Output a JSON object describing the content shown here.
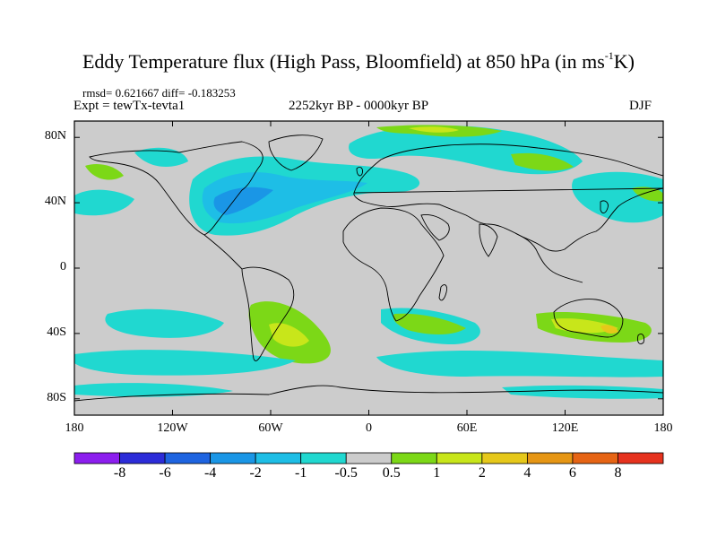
{
  "title": {
    "main": "Eddy Temperature flux (High Pass, Bloomfield) at 850 hPa (in ms",
    "sup": "-1",
    "end": "K)"
  },
  "stats": "rmsd= 0.621667 diff= -0.183253",
  "experiment": "Expt = tewTx-tevta1",
  "period": "2252kyr BP - 0000kyr BP",
  "season": "DJF",
  "lat_ticks": [
    {
      "label": "80N",
      "lat": 80
    },
    {
      "label": "40N",
      "lat": 40
    },
    {
      "label": "0",
      "lat": 0
    },
    {
      "label": "40S",
      "lat": -40
    },
    {
      "label": "80S",
      "lat": -80
    }
  ],
  "lon_ticks": [
    {
      "label": "180",
      "lon": -180
    },
    {
      "label": "120W",
      "lon": -120
    },
    {
      "label": "60W",
      "lon": -60
    },
    {
      "label": "0",
      "lon": 0
    },
    {
      "label": "60E",
      "lon": 60
    },
    {
      "label": "120E",
      "lon": 120
    },
    {
      "label": "180",
      "lon": 180
    }
  ],
  "colorbar": {
    "labels": [
      "-8",
      "-6",
      "-4",
      "-2",
      "-1",
      "-0.5",
      "0.5",
      "1",
      "2",
      "4",
      "6",
      "8"
    ],
    "colors": [
      "#8c1eee",
      "#2c2cd8",
      "#1e64e0",
      "#1a96e6",
      "#1ebee6",
      "#20d8d0",
      "#cccccc",
      "#7cd817",
      "#c8e61a",
      "#e6c81a",
      "#e69614",
      "#e66414",
      "#e6321e"
    ]
  },
  "colors": {
    "background": "#cccccc",
    "land_outline": "#000000"
  }
}
